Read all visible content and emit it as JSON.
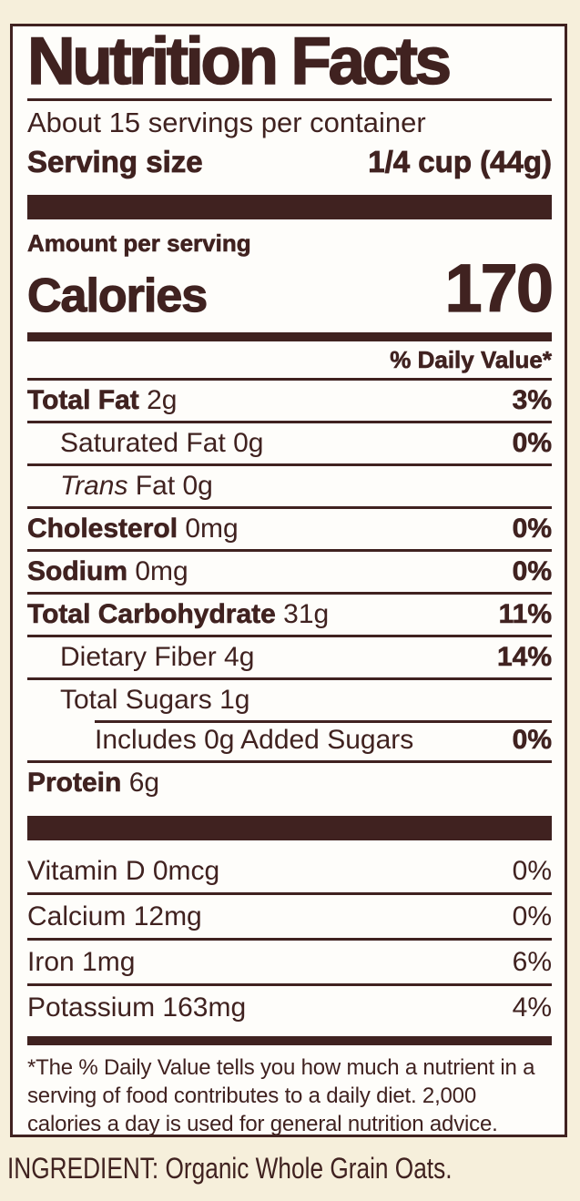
{
  "colors": {
    "ink": "#402220",
    "paper": "#fefdfa",
    "background": "#f6efdb"
  },
  "label": {
    "title": "Nutrition Facts",
    "servings_per_container": "About 15 servings per container",
    "serving_size_label": "Serving size",
    "serving_size_value": "1/4 cup (44g)",
    "amount_per_serving": "Amount per serving",
    "calories_label": "Calories",
    "calories_value": "170",
    "daily_value_header": "% Daily Value*",
    "nutrients": [
      {
        "name": "Total Fat",
        "amount": "2g",
        "dv": "3%",
        "style": "bold",
        "indent": 0,
        "rule": "full"
      },
      {
        "name": "Saturated Fat",
        "amount": "0g",
        "dv": "0%",
        "style": "regular",
        "indent": 1,
        "rule": "full"
      },
      {
        "name_italic": "Trans",
        "name": " Fat",
        "amount": "0g",
        "dv": "",
        "style": "regular",
        "indent": 1,
        "rule": "full"
      },
      {
        "name": "Cholesterol",
        "amount": "0mg",
        "dv": "0%",
        "style": "bold",
        "indent": 0,
        "rule": "full"
      },
      {
        "name": "Sodium",
        "amount": "0mg",
        "dv": "0%",
        "style": "bold",
        "indent": 0,
        "rule": "full"
      },
      {
        "name": "Total Carbohydrate",
        "amount": "31g",
        "dv": "11%",
        "style": "bold",
        "indent": 0,
        "rule": "full"
      },
      {
        "name": "Dietary Fiber",
        "amount": "4g",
        "dv": "14%",
        "style": "regular",
        "indent": 1,
        "rule": "full"
      },
      {
        "name": "Total Sugars",
        "amount": "1g",
        "dv": "",
        "style": "regular",
        "indent": 1,
        "rule": "full"
      },
      {
        "name": "Includes 0g Added Sugars",
        "amount": "",
        "dv": "0%",
        "style": "regular",
        "indent": 2,
        "rule": "partial"
      },
      {
        "name": "Protein",
        "amount": "6g",
        "dv": "",
        "style": "bold",
        "indent": 0,
        "rule": "full"
      }
    ],
    "vitamins": [
      {
        "name": "Vitamin D",
        "amount": "0mcg",
        "dv": "0%"
      },
      {
        "name": "Calcium",
        "amount": "12mg",
        "dv": "0%"
      },
      {
        "name": "Iron",
        "amount": "1mg",
        "dv": "6%"
      },
      {
        "name": "Potassium",
        "amount": "163mg",
        "dv": "4%"
      }
    ],
    "footnote": "*The % Daily Value tells you how much a nutrient in a serving of food contributes to a daily diet. 2,000 calories a day is used for general nutrition advice."
  },
  "ingredient_line": "INGREDIENT: Organic Whole Grain Oats."
}
